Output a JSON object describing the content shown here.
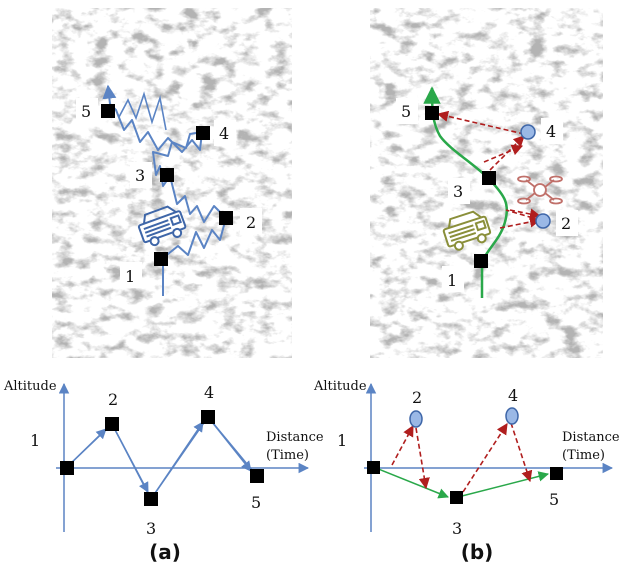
{
  "panels": [
    {
      "caption": "(a)",
      "map_points": [
        {
          "id": "1",
          "label": "1"
        },
        {
          "id": "2",
          "label": "2"
        },
        {
          "id": "3",
          "label": "3"
        },
        {
          "id": "4",
          "label": "4"
        },
        {
          "id": "5",
          "label": "5"
        }
      ],
      "graph": {
        "y_axis_label": "Altitude",
        "x_axis_label_line1": "Distance",
        "x_axis_label_line2": "(Time)",
        "point_labels": [
          "1",
          "2",
          "3",
          "4",
          "5"
        ]
      }
    },
    {
      "caption": "(b)",
      "map_points": [
        {
          "id": "1",
          "label": "1"
        },
        {
          "id": "2",
          "label": "2"
        },
        {
          "id": "3",
          "label": "3"
        },
        {
          "id": "4",
          "label": "4"
        },
        {
          "id": "5",
          "label": "5"
        }
      ],
      "graph": {
        "y_axis_label": "Altitude",
        "x_axis_label_line1": "Distance",
        "x_axis_label_line2": "(Time)",
        "point_labels": [
          "1",
          "2",
          "3",
          "4",
          "5"
        ]
      }
    }
  ],
  "colors": {
    "path_blue": "#5b84c4",
    "ground_green": "#2aa84a",
    "drone_red": "#b01e1e",
    "marker_black": "#000000",
    "drone_node_fill": "#9ab8e6",
    "drone_icon": "#c0706a",
    "vehicle_olive": "#8a8f3a",
    "terrain_gray": "#9a9a9a"
  }
}
